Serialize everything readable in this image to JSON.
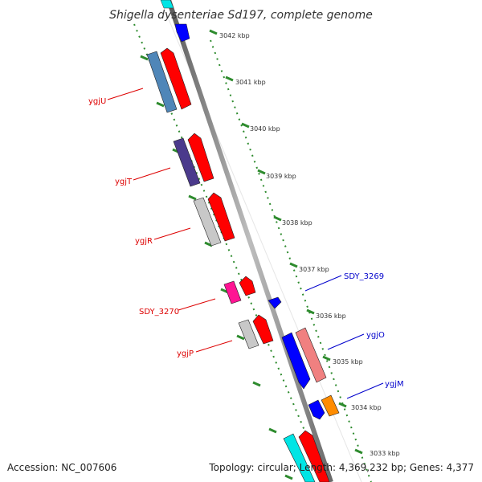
{
  "title": "Shigella dysenteriae Sd197, complete genome",
  "footer": {
    "accession": "Accession: NC_007606",
    "summary": "Topology: circular; Length: 4,369,232 bp; Genes: 4,377"
  },
  "ticks": [
    "3042 kbp",
    "3041 kbp",
    "3040 kbp",
    "3039 kbp",
    "3038 kbp",
    "3037 kbp",
    "3036 kbp",
    "3035 kbp",
    "3034 kbp",
    "3033 kbp"
  ],
  "genes_left": [
    {
      "name": "ygjU",
      "color": "#dd0000"
    },
    {
      "name": "ygjT",
      "color": "#dd0000"
    },
    {
      "name": "ygjR",
      "color": "#dd0000"
    },
    {
      "name": "SDY_3270",
      "color": "#dd0000"
    },
    {
      "name": "ygjP",
      "color": "#dd0000"
    }
  ],
  "genes_right": [
    {
      "name": "SDY_3269",
      "color": "#0000cc"
    },
    {
      "name": "ygjO",
      "color": "#0000cc"
    },
    {
      "name": "ygjM",
      "color": "#0000cc"
    }
  ],
  "colors": {
    "backbone": "#808080",
    "tick_green": "#2e8b2e",
    "forward_cds": "#ff0000",
    "reverse_cds": "#0000ff",
    "ygjU_feature": "#4f86b8",
    "ygjT_feature": "#4b3a8c",
    "ygjR_feature": "#c8c8c8",
    "SDY_3270_feature": "#ff1493",
    "ygjP_feature": "#c8c8c8",
    "ygjO_feature": "#f08080",
    "ygjM_feature": "#ff8c00",
    "top_feature": "#00e5e5"
  }
}
